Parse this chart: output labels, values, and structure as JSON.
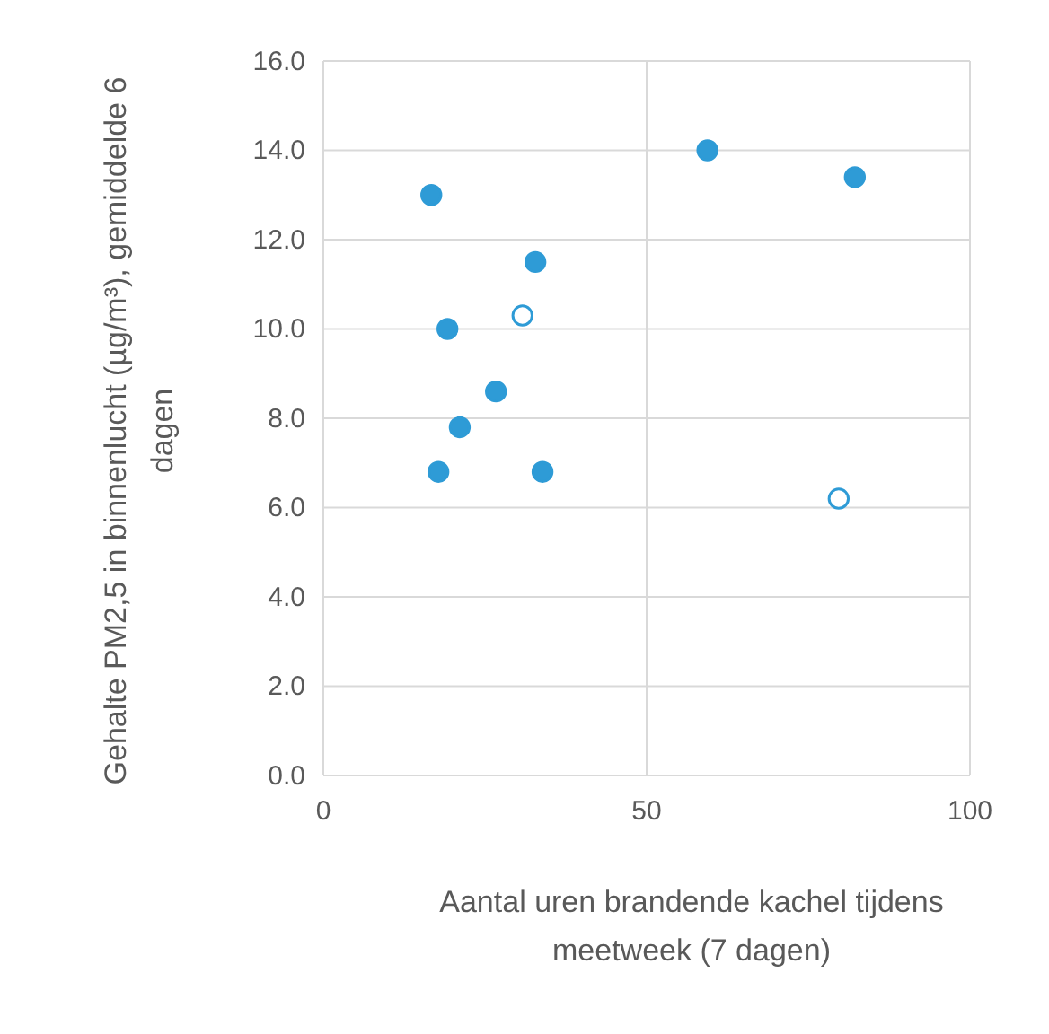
{
  "chart_data": {
    "type": "scatter",
    "xlabel": "Aantal uren brandende kachel tijdens meetweek  (7 dagen)",
    "ylabel": "Gehalte PM2,5 in binnenlucht (µg/m³), gemiddelde 6 dagen",
    "xlim": [
      0,
      100
    ],
    "xticks": [
      0,
      50,
      100
    ],
    "ylim": [
      0,
      16
    ],
    "yticks": [
      {
        "value": 0,
        "label": "0.0"
      },
      {
        "value": 2,
        "label": "2.0"
      },
      {
        "value": 4,
        "label": "4.0"
      },
      {
        "value": 6,
        "label": "6.0"
      },
      {
        "value": 8,
        "label": "8.0"
      },
      {
        "value": 10,
        "label": "10.0"
      },
      {
        "value": 12,
        "label": "12.0"
      },
      {
        "value": 14,
        "label": "14.0"
      },
      {
        "value": 16,
        "label": "16.0"
      }
    ],
    "grid": true,
    "marker": "circle",
    "series": [
      {
        "color": "#2e9bd6",
        "x": [
          16.7,
          19.2,
          32.8,
          26.7,
          21.1,
          17.8,
          33.9,
          59.4,
          82.2
        ],
        "values": [
          13.0,
          10.0,
          11.5,
          8.6,
          7.8,
          6.8,
          6.8,
          14.0,
          13.4
        ]
      },
      {
        "color": "#ffffff",
        "x": [
          30.8,
          79.7
        ],
        "values": [
          10.3,
          6.2
        ]
      }
    ]
  }
}
